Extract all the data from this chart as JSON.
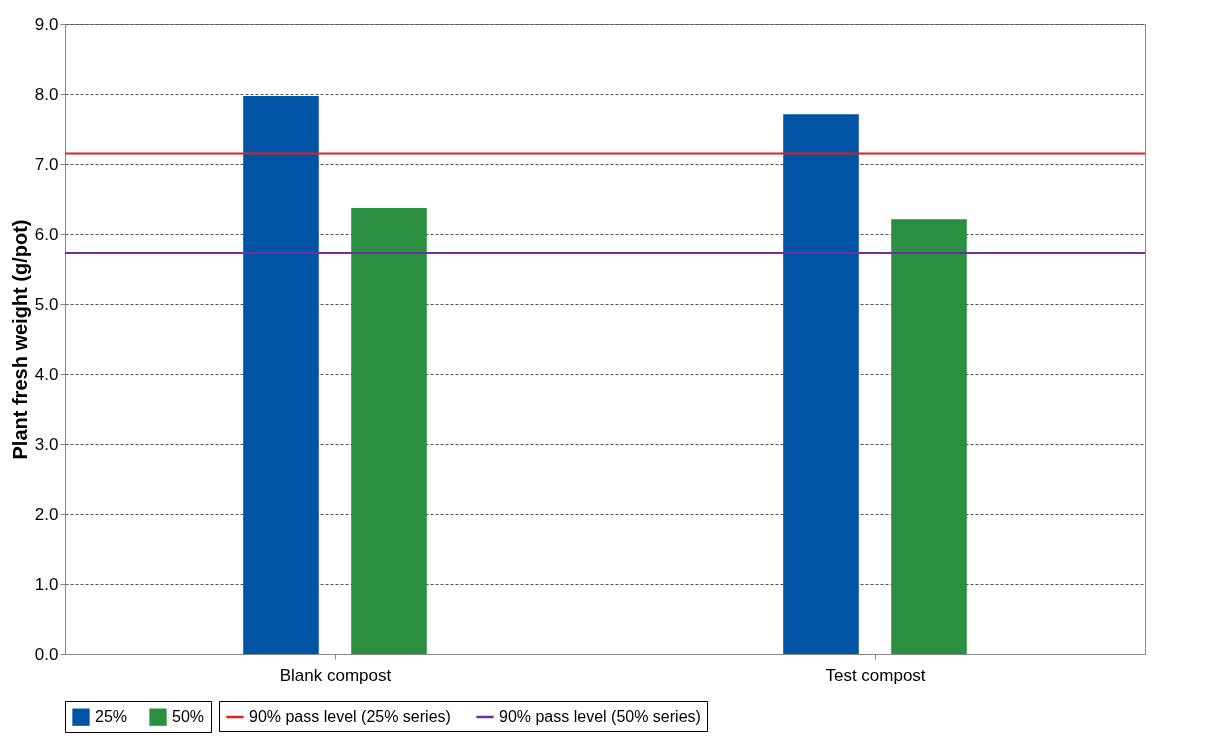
{
  "chart_data": {
    "type": "bar",
    "ylabel": "Plant fresh weight (g/pot)",
    "categories": [
      "Blank compost",
      "Test compost"
    ],
    "series": [
      {
        "name": "25%",
        "color": "#0054a6",
        "values": [
          7.97,
          7.71
        ]
      },
      {
        "name": "50%",
        "color": "#2a9040",
        "values": [
          6.37,
          6.21
        ]
      }
    ],
    "ref_lines": [
      {
        "axis": "y",
        "value": 7.15,
        "label": "90% pass level (25% series)",
        "color": "#e0201c",
        "line_style": "solid"
      },
      {
        "axis": "y",
        "value": 5.73,
        "label": "90% pass level (50% series)",
        "color": "#7030a0",
        "line_style": "solid"
      }
    ],
    "ylim": [
      0,
      9
    ],
    "yticks": [
      {
        "value": 0,
        "label": "0.0"
      },
      {
        "value": 1,
        "label": "1.0"
      },
      {
        "value": 2,
        "label": "2.0"
      },
      {
        "value": 3,
        "label": "3.0"
      },
      {
        "value": 4,
        "label": "4.0"
      },
      {
        "value": 5,
        "label": "5.0"
      },
      {
        "value": 6,
        "label": "6.0"
      },
      {
        "value": 7,
        "label": "7.0"
      },
      {
        "value": 8,
        "label": "8.0"
      },
      {
        "value": 9,
        "label": "9.0"
      }
    ],
    "grid": "y",
    "legend": "bottom"
  }
}
